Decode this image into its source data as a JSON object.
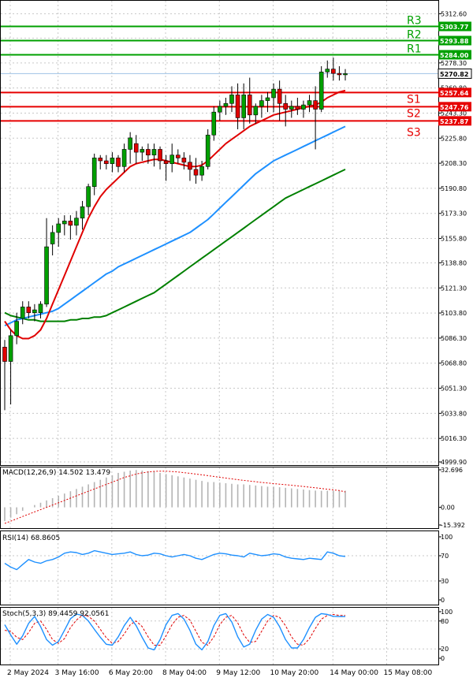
{
  "colors": {
    "background": "#ffffff",
    "grid": "#c8c8c8",
    "axis": "#000000",
    "bull": "#00a000",
    "bear": "#e00000",
    "resistance": "#00a000",
    "support": "#e60000",
    "ma_fast": "#e00000",
    "ma_mid": "#1e90ff",
    "ma_slow": "#008000",
    "current_price_line": "#9ec3e6",
    "macd_hist": "#b4b4b4",
    "macd_signal": "#e00000",
    "rsi": "#1e90ff",
    "stoch_main": "#1e90ff",
    "stoch_signal": "#e00000"
  },
  "chart_data": [
    {
      "type": "candlestick",
      "ylim": [
        4999.9,
        5320.0
      ],
      "yticks": [
        "5312.60",
        "5295.60",
        "5278.30",
        "5260.80",
        "5243.30",
        "5225.80",
        "5208.30",
        "5190.80",
        "5173.30",
        "5155.80",
        "5138.80",
        "5121.30",
        "5103.80",
        "5086.30",
        "5068.80",
        "5051.30",
        "5033.80",
        "5016.30",
        "4999.90"
      ],
      "xticks": [
        "2 May 2024",
        "3 May 16:00",
        "6 May 20:00",
        "8 May 04:00",
        "9 May 12:00",
        "10 May 20:00",
        "14 May 00:00",
        "15 May 08:00"
      ],
      "xtick_index": [
        0,
        8,
        17,
        26,
        35,
        44,
        54,
        63
      ],
      "current_price": 5270.82,
      "current_price_label": "5270.82",
      "levels": [
        {
          "name": "R3",
          "value": 5303.77,
          "label": "5303.77",
          "kind": "resistance"
        },
        {
          "name": "R2",
          "value": 5293.88,
          "label": "5293.88",
          "kind": "resistance"
        },
        {
          "name": "R1",
          "value": 5284.0,
          "label": "5284.00",
          "kind": "resistance"
        },
        {
          "name": "S1",
          "value": 5257.64,
          "label": "5257.64",
          "kind": "support"
        },
        {
          "name": "S2",
          "value": 5247.76,
          "label": "5247.76",
          "kind": "support"
        },
        {
          "name": "S3",
          "value": 5237.87,
          "label": "5237.87",
          "kind": "support"
        }
      ],
      "candles": [
        [
          5080,
          5085,
          5036,
          5070
        ],
        [
          5070,
          5092,
          5040,
          5088
        ],
        [
          5088,
          5104,
          5082,
          5098
        ],
        [
          5100,
          5112,
          5096,
          5108
        ],
        [
          5108,
          5112,
          5100,
          5104
        ],
        [
          5104,
          5110,
          5098,
          5106
        ],
        [
          5104,
          5112,
          5100,
          5110
        ],
        [
          5110,
          5170,
          5108,
          5150
        ],
        [
          5152,
          5165,
          5144,
          5160
        ],
        [
          5160,
          5170,
          5150,
          5166
        ],
        [
          5166,
          5172,
          5158,
          5168
        ],
        [
          5168,
          5172,
          5155,
          5165
        ],
        [
          5165,
          5175,
          5158,
          5170
        ],
        [
          5170,
          5182,
          5162,
          5178
        ],
        [
          5178,
          5194,
          5172,
          5192
        ],
        [
          5192,
          5215,
          5186,
          5212
        ],
        [
          5212,
          5214,
          5204,
          5210
        ],
        [
          5210,
          5214,
          5204,
          5208
        ],
        [
          5208,
          5216,
          5202,
          5212
        ],
        [
          5212,
          5214,
          5202,
          5206
        ],
        [
          5206,
          5222,
          5202,
          5218
        ],
        [
          5218,
          5230,
          5208,
          5226
        ],
        [
          5222,
          5228,
          5208,
          5216
        ],
        [
          5216,
          5220,
          5210,
          5218
        ],
        [
          5218,
          5222,
          5208,
          5214
        ],
        [
          5214,
          5222,
          5206,
          5218
        ],
        [
          5218,
          5220,
          5204,
          5210
        ],
        [
          5210,
          5214,
          5196,
          5208
        ],
        [
          5208,
          5222,
          5202,
          5214
        ],
        [
          5214,
          5218,
          5208,
          5212
        ],
        [
          5212,
          5216,
          5204,
          5209
        ],
        [
          5209,
          5214,
          5196,
          5204
        ],
        [
          5204,
          5212,
          5194,
          5200
        ],
        [
          5200,
          5210,
          5196,
          5206
        ],
        [
          5206,
          5232,
          5204,
          5228
        ],
        [
          5228,
          5248,
          5224,
          5244
        ],
        [
          5244,
          5252,
          5238,
          5248
        ],
        [
          5248,
          5254,
          5242,
          5250
        ],
        [
          5250,
          5262,
          5244,
          5256
        ],
        [
          5256,
          5264,
          5232,
          5240
        ],
        [
          5240,
          5264,
          5232,
          5256
        ],
        [
          5256,
          5268,
          5236,
          5242
        ],
        [
          5242,
          5250,
          5236,
          5248
        ],
        [
          5248,
          5256,
          5240,
          5252
        ],
        [
          5252,
          5258,
          5244,
          5254
        ],
        [
          5254,
          5264,
          5244,
          5260
        ],
        [
          5260,
          5266,
          5238,
          5250
        ],
        [
          5250,
          5256,
          5234,
          5246
        ],
        [
          5246,
          5252,
          5240,
          5248
        ],
        [
          5248,
          5254,
          5242,
          5246
        ],
        [
          5246,
          5252,
          5240,
          5249
        ],
        [
          5249,
          5256,
          5244,
          5252
        ],
        [
          5252,
          5262,
          5218,
          5246
        ],
        [
          5246,
          5276,
          5244,
          5272
        ],
        [
          5272,
          5280,
          5268,
          5274
        ],
        [
          5274,
          5282,
          5266,
          5271
        ],
        [
          5271,
          5276,
          5266,
          5270
        ],
        [
          5270,
          5274,
          5266,
          5270.82
        ]
      ],
      "ma_fast": [
        5098,
        5092,
        5088,
        5086,
        5086,
        5088,
        5092,
        5100,
        5110,
        5120,
        5130,
        5140,
        5150,
        5160,
        5170,
        5178,
        5185,
        5190,
        5194,
        5198,
        5202,
        5206,
        5208,
        5209,
        5210,
        5211,
        5211,
        5210,
        5209,
        5208,
        5207,
        5206,
        5206,
        5207,
        5210,
        5214,
        5218,
        5222,
        5225,
        5228,
        5231,
        5234,
        5236,
        5238,
        5240,
        5242,
        5243,
        5244,
        5245,
        5246,
        5247,
        5248,
        5249,
        5251,
        5254,
        5256,
        5258,
        5259
      ],
      "ma_mid": [
        5095,
        5097,
        5099,
        5100,
        5101,
        5102,
        5103,
        5104,
        5105,
        5107,
        5110,
        5113,
        5116,
        5119,
        5122,
        5125,
        5128,
        5131,
        5133,
        5136,
        5138,
        5140,
        5142,
        5144,
        5146,
        5148,
        5150,
        5152,
        5154,
        5156,
        5158,
        5160,
        5163,
        5166,
        5169,
        5173,
        5177,
        5181,
        5185,
        5189,
        5193,
        5197,
        5201,
        5204,
        5207,
        5210,
        5212,
        5214,
        5216,
        5218,
        5220,
        5222,
        5224,
        5226,
        5228,
        5230,
        5232,
        5234
      ],
      "ma_slow": [
        5104,
        5102,
        5101,
        5100,
        5099,
        5099,
        5098,
        5098,
        5098,
        5098,
        5098,
        5099,
        5099,
        5100,
        5100,
        5101,
        5101,
        5102,
        5104,
        5106,
        5108,
        5110,
        5112,
        5114,
        5116,
        5118,
        5121,
        5124,
        5127,
        5130,
        5133,
        5136,
        5139,
        5142,
        5145,
        5148,
        5151,
        5154,
        5157,
        5160,
        5163,
        5166,
        5169,
        5172,
        5175,
        5178,
        5181,
        5184,
        5186,
        5188,
        5190,
        5192,
        5194,
        5196,
        5198,
        5200,
        5202,
        5204
      ]
    },
    {
      "type": "bar",
      "title": "MACD(12,26,9) 14.502 13.479",
      "ylim": [
        -15.392,
        32.696
      ],
      "yticks": [
        "32.696",
        "0.00",
        "-15.392"
      ],
      "zero_label": "0.00",
      "values": [
        -12,
        -9,
        -6,
        -3,
        0,
        2,
        4,
        6,
        8,
        10,
        12,
        14,
        16,
        18,
        20,
        22,
        24,
        26,
        28,
        30,
        31,
        32,
        32.5,
        32,
        31.5,
        31,
        30,
        29,
        28,
        27,
        26,
        25,
        24,
        23,
        22,
        22,
        21.5,
        21,
        20.5,
        20,
        20,
        19.5,
        19,
        18.5,
        18,
        18,
        17.5,
        17,
        16.5,
        16,
        15.5,
        15,
        14.6,
        14.4,
        14.4,
        14.5,
        14.5,
        14.502
      ],
      "signal": [
        -14,
        -12,
        -10,
        -8,
        -6,
        -4,
        -2,
        0,
        2,
        4,
        6,
        8,
        10,
        12,
        14,
        16,
        18,
        20,
        22,
        24,
        26,
        27.5,
        29,
        30,
        30.8,
        31.3,
        31.5,
        31.5,
        31.2,
        30.8,
        30.2,
        29.6,
        29,
        28.3,
        27.6,
        26.9,
        26.2,
        25.5,
        24.8,
        24.1,
        23.5,
        22.9,
        22.3,
        21.7,
        21.2,
        20.7,
        20.2,
        19.7,
        19.2,
        18.7,
        18.2,
        17.6,
        17,
        16.4,
        15.8,
        15.2,
        14.6,
        13.479
      ]
    },
    {
      "type": "line",
      "title": "RSI(14) 68.8605",
      "ylim": [
        0,
        100
      ],
      "yticks": [
        "100",
        "70",
        "30",
        "0"
      ],
      "tick_values": [
        100,
        70,
        30,
        0
      ],
      "values": [
        58,
        52,
        48,
        56,
        64,
        60,
        58,
        62,
        64,
        68,
        74,
        76,
        75,
        72,
        74,
        78,
        76,
        74,
        72,
        73,
        74,
        76,
        72,
        70,
        71,
        74,
        73,
        70,
        68,
        70,
        72,
        70,
        66,
        64,
        68,
        72,
        74,
        73,
        71,
        70,
        68,
        74,
        72,
        70,
        71,
        73,
        72,
        68,
        66,
        65,
        64,
        66,
        65,
        64,
        76,
        74,
        70,
        68.86
      ]
    },
    {
      "type": "line",
      "title": "Stoch(5,3,3) 89.4459 92.0561",
      "ylim": [
        0,
        100
      ],
      "yticks": [
        "100",
        "80",
        "20",
        "0"
      ],
      "tick_values": [
        100,
        80,
        20,
        0
      ],
      "main": [
        72,
        50,
        30,
        48,
        75,
        90,
        68,
        40,
        28,
        36,
        60,
        85,
        95,
        92,
        80,
        62,
        45,
        30,
        28,
        46,
        70,
        88,
        70,
        45,
        22,
        18,
        40,
        72,
        92,
        96,
        84,
        60,
        30,
        18,
        36,
        70,
        92,
        96,
        78,
        46,
        24,
        30,
        60,
        84,
        94,
        88,
        68,
        40,
        22,
        22,
        40,
        66,
        88,
        96,
        94,
        90,
        89.45,
        89.45
      ],
      "signal": [
        60,
        58,
        45,
        40,
        55,
        75,
        80,
        62,
        40,
        32,
        42,
        66,
        82,
        92,
        90,
        80,
        62,
        44,
        32,
        36,
        52,
        72,
        80,
        68,
        46,
        28,
        28,
        48,
        72,
        88,
        92,
        82,
        58,
        34,
        28,
        46,
        72,
        88,
        92,
        76,
        50,
        34,
        36,
        58,
        80,
        92,
        88,
        70,
        46,
        30,
        28,
        42,
        64,
        84,
        92,
        94,
        92,
        92.06
      ]
    }
  ]
}
